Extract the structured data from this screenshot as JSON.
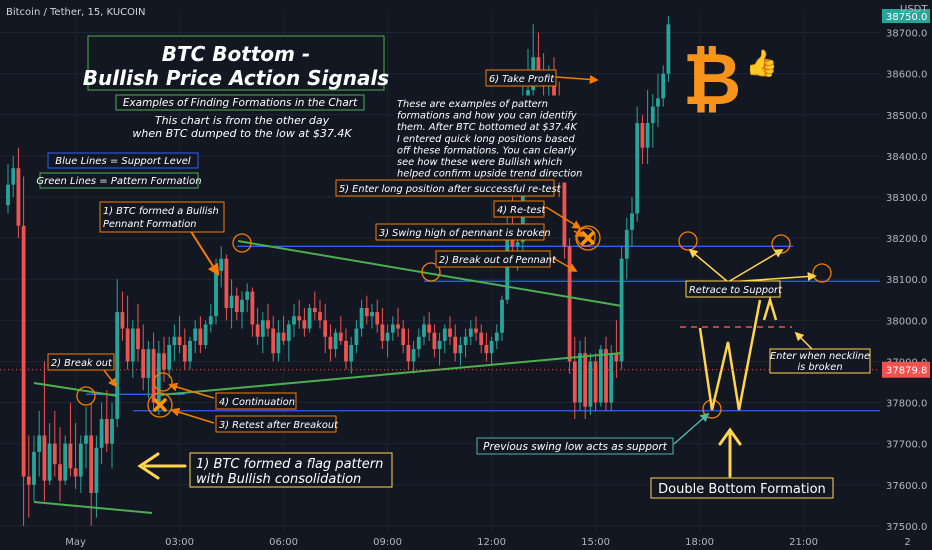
{
  "chart_data": {
    "type": "candlestick",
    "header": {
      "symbol": "Bitcoin / Tether, 15, KUCOIN",
      "currency": "USDT"
    },
    "title_line1": "BTC Bottom -",
    "title_line2": "Bullish Price Action Signals",
    "subtitle": "Examples of Finding Formations in the Chart",
    "note": [
      "This chart is from the other day",
      "when BTC dumped to the low at $37.4K"
    ],
    "legend": [
      {
        "text": "Blue Lines = Support Level",
        "color": "#2962ff"
      },
      {
        "text": "Green Lines = Pattern Formation",
        "color": "#4caf50"
      }
    ],
    "explanation": [
      "These are examples of pattern",
      "formations and how you can identify",
      "them. After BTC bottomed at $37.4K",
      "I entered quick long positions based",
      "off these formations. You can clearly",
      "see how these were Bullish which",
      "helped confirm upside trend direction"
    ],
    "y_ticks": [
      37500,
      37600,
      37700,
      37800,
      37900,
      38000,
      38100,
      38200,
      38300,
      38400,
      38500,
      38600,
      38700
    ],
    "y_range": [
      37490,
      38750
    ],
    "x_ticks": [
      {
        "label": "May",
        "bar": 13
      },
      {
        "label": "03:00",
        "bar": 33
      },
      {
        "label": "06:00",
        "bar": 53
      },
      {
        "label": "09:00",
        "bar": 73
      },
      {
        "label": "12:00",
        "bar": 93
      },
      {
        "label": "15:00",
        "bar": 113
      },
      {
        "label": "18:00",
        "bar": 133
      },
      {
        "label": "21:00",
        "bar": 153
      },
      {
        "label": "2",
        "bar": 173
      }
    ],
    "current_price": "37879.8",
    "top_price": "38750.0",
    "annotations": {
      "a1": [
        "1) BTC formed a Bullish",
        "Pennant Formation"
      ],
      "a2": "2) Break out of Pennant",
      "a3": "3) Swing high of pennant is broken",
      "a4": "4) Re-test",
      "a5": "5) Enter long position after successful re-test",
      "a6": "6) Take Profit",
      "b1": [
        "1) BTC formed a flag pattern",
        "with Bullish consolidation"
      ],
      "b2": "2) Break out",
      "b3": "3) Retest after Breakout",
      "b4": "4) Continuation",
      "retrace": "Retrace to Support",
      "neckline": [
        "Enter when neckline",
        "is broken"
      ],
      "swing_low": "Previous swing low acts as support",
      "double_bottom": "Double Bottom Formation"
    },
    "support_levels": [
      38180,
      38095,
      37780,
      37820
    ],
    "candles": [
      [
        38280,
        38380,
        38260,
        38330
      ],
      [
        38330,
        38400,
        38300,
        38370
      ],
      [
        38370,
        38420,
        38200,
        38230
      ],
      [
        38230,
        38350,
        37500,
        37620
      ],
      [
        37620,
        37720,
        37520,
        37600
      ],
      [
        37600,
        37720,
        37560,
        37680
      ],
      [
        37680,
        37780,
        37620,
        37720
      ],
      [
        37720,
        37900,
        37560,
        37610
      ],
      [
        37610,
        37750,
        37600,
        37700
      ],
      [
        37700,
        37780,
        37620,
        37650
      ],
      [
        37650,
        37740,
        37560,
        37610
      ],
      [
        37610,
        37720,
        37600,
        37700
      ],
      [
        37700,
        37800,
        37620,
        37640
      ],
      [
        37640,
        37750,
        37590,
        37620
      ],
      [
        37620,
        37720,
        37580,
        37700
      ],
      [
        37700,
        37790,
        37640,
        37720
      ],
      [
        37720,
        37800,
        37500,
        37580
      ],
      [
        37580,
        37720,
        37520,
        37690
      ],
      [
        37690,
        37800,
        37650,
        37760
      ],
      [
        37760,
        37830,
        37680,
        37700
      ],
      [
        37700,
        37800,
        37640,
        37760
      ],
      [
        37760,
        38100,
        37740,
        38020
      ],
      [
        38020,
        38070,
        37950,
        37980
      ],
      [
        37980,
        38060,
        37880,
        37900
      ],
      [
        37900,
        38000,
        37860,
        37980
      ],
      [
        37980,
        38040,
        37900,
        37930
      ],
      [
        37930,
        37990,
        37830,
        37860
      ],
      [
        37860,
        37950,
        37810,
        37930
      ],
      [
        37930,
        37970,
        37780,
        37800
      ],
      [
        37800,
        37950,
        37770,
        37920
      ],
      [
        37920,
        37960,
        37850,
        37880
      ],
      [
        37880,
        37960,
        37860,
        37940
      ],
      [
        37940,
        37990,
        37900,
        37960
      ],
      [
        37960,
        38010,
        37920,
        37940
      ],
      [
        37940,
        37980,
        37880,
        37900
      ],
      [
        37900,
        37960,
        37880,
        37950
      ],
      [
        37950,
        38000,
        37920,
        37980
      ],
      [
        37980,
        38010,
        37920,
        37940
      ],
      [
        37940,
        38000,
        37930,
        37990
      ],
      [
        37990,
        38040,
        37970,
        38010
      ],
      [
        38010,
        38150,
        37990,
        38120
      ],
      [
        38120,
        38180,
        38080,
        38150
      ],
      [
        38150,
        38160,
        38000,
        38030
      ],
      [
        38030,
        38100,
        37980,
        38060
      ],
      [
        38060,
        38080,
        38000,
        38020
      ],
      [
        38020,
        38070,
        37980,
        38050
      ],
      [
        38050,
        38090,
        38020,
        38070
      ],
      [
        38070,
        38080,
        37960,
        37990
      ],
      [
        37990,
        38030,
        37940,
        37960
      ],
      [
        37960,
        38020,
        37920,
        38000
      ],
      [
        38000,
        38040,
        37960,
        37980
      ],
      [
        37980,
        38010,
        37900,
        37920
      ],
      [
        37920,
        38000,
        37900,
        37970
      ],
      [
        37970,
        38010,
        37940,
        37950
      ],
      [
        37950,
        38000,
        37900,
        37990
      ],
      [
        37990,
        38040,
        37960,
        38010
      ],
      [
        38010,
        38050,
        37980,
        38000
      ],
      [
        38000,
        38030,
        37960,
        37980
      ],
      [
        37980,
        38040,
        37970,
        38030
      ],
      [
        38030,
        38070,
        38000,
        38020
      ],
      [
        38020,
        38050,
        37980,
        38000
      ],
      [
        38000,
        38040,
        37920,
        37960
      ],
      [
        37960,
        37990,
        37900,
        37930
      ],
      [
        37930,
        37980,
        37910,
        37970
      ],
      [
        37970,
        38010,
        37940,
        37950
      ],
      [
        37950,
        37980,
        37880,
        37900
      ],
      [
        37900,
        37960,
        37870,
        37940
      ],
      [
        37940,
        38000,
        37920,
        37980
      ],
      [
        37980,
        38050,
        37960,
        38030
      ],
      [
        38030,
        38060,
        37990,
        38010
      ],
      [
        38010,
        38040,
        37980,
        38020
      ],
      [
        38020,
        38050,
        37970,
        37990
      ],
      [
        37990,
        38030,
        37930,
        37950
      ],
      [
        37950,
        37990,
        37910,
        37970
      ],
      [
        37970,
        38010,
        37950,
        37990
      ],
      [
        37990,
        38030,
        37960,
        37980
      ],
      [
        37980,
        38000,
        37920,
        37940
      ],
      [
        37940,
        37980,
        37880,
        37900
      ],
      [
        37900,
        37950,
        37870,
        37930
      ],
      [
        37930,
        37980,
        37910,
        37960
      ],
      [
        37960,
        38010,
        37940,
        37990
      ],
      [
        37990,
        38020,
        37950,
        37970
      ],
      [
        37970,
        37990,
        37910,
        37930
      ],
      [
        37930,
        37970,
        37890,
        37950
      ],
      [
        37950,
        37990,
        37920,
        37980
      ],
      [
        37980,
        38010,
        37940,
        37960
      ],
      [
        37960,
        37990,
        37900,
        37920
      ],
      [
        37920,
        37960,
        37890,
        37940
      ],
      [
        37940,
        37980,
        37910,
        37960
      ],
      [
        37960,
        38000,
        37940,
        37980
      ],
      [
        37980,
        38010,
        37950,
        37970
      ],
      [
        37970,
        37990,
        37920,
        37940
      ],
      [
        37940,
        37970,
        37900,
        37920
      ],
      [
        37920,
        37960,
        37890,
        37950
      ],
      [
        37950,
        37990,
        37930,
        37970
      ],
      [
        37970,
        38060,
        37950,
        38050
      ],
      [
        38050,
        38250,
        38040,
        38230
      ],
      [
        38230,
        38300,
        38150,
        38180
      ],
      [
        38180,
        38220,
        38120,
        38190
      ],
      [
        38190,
        38600,
        38170,
        38520
      ],
      [
        38520,
        38660,
        38480,
        38560
      ],
      [
        38560,
        38720,
        38530,
        38640
      ],
      [
        38640,
        38700,
        38580,
        38600
      ],
      [
        38600,
        38650,
        38540,
        38570
      ],
      [
        38570,
        38620,
        38500,
        38600
      ],
      [
        38600,
        38640,
        38480,
        38520
      ],
      [
        38520,
        38580,
        38300,
        38350
      ],
      [
        38350,
        38400,
        38150,
        38180
      ],
      [
        38180,
        38200,
        37870,
        37900
      ],
      [
        37900,
        37960,
        37760,
        37800
      ],
      [
        37800,
        37950,
        37780,
        37920
      ],
      [
        37920,
        37960,
        37760,
        37790
      ],
      [
        37790,
        37920,
        37770,
        37900
      ],
      [
        37900,
        37920,
        37780,
        37800
      ],
      [
        37800,
        37940,
        37790,
        37930
      ],
      [
        37930,
        37960,
        37780,
        37800
      ],
      [
        37800,
        37940,
        37780,
        37920
      ],
      [
        37920,
        38000,
        37860,
        37900
      ],
      [
        37900,
        38180,
        37880,
        38150
      ],
      [
        38150,
        38250,
        38100,
        38220
      ],
      [
        38220,
        38300,
        38180,
        38260
      ],
      [
        38260,
        38520,
        38240,
        38480
      ],
      [
        38480,
        38500,
        38380,
        38420
      ],
      [
        38420,
        38560,
        38380,
        38480
      ],
      [
        38480,
        38550,
        38420,
        38520
      ],
      [
        38520,
        38600,
        38470,
        38540
      ],
      [
        38540,
        38620,
        38520,
        38600
      ],
      [
        38600,
        38740,
        38580,
        38720
      ]
    ]
  }
}
